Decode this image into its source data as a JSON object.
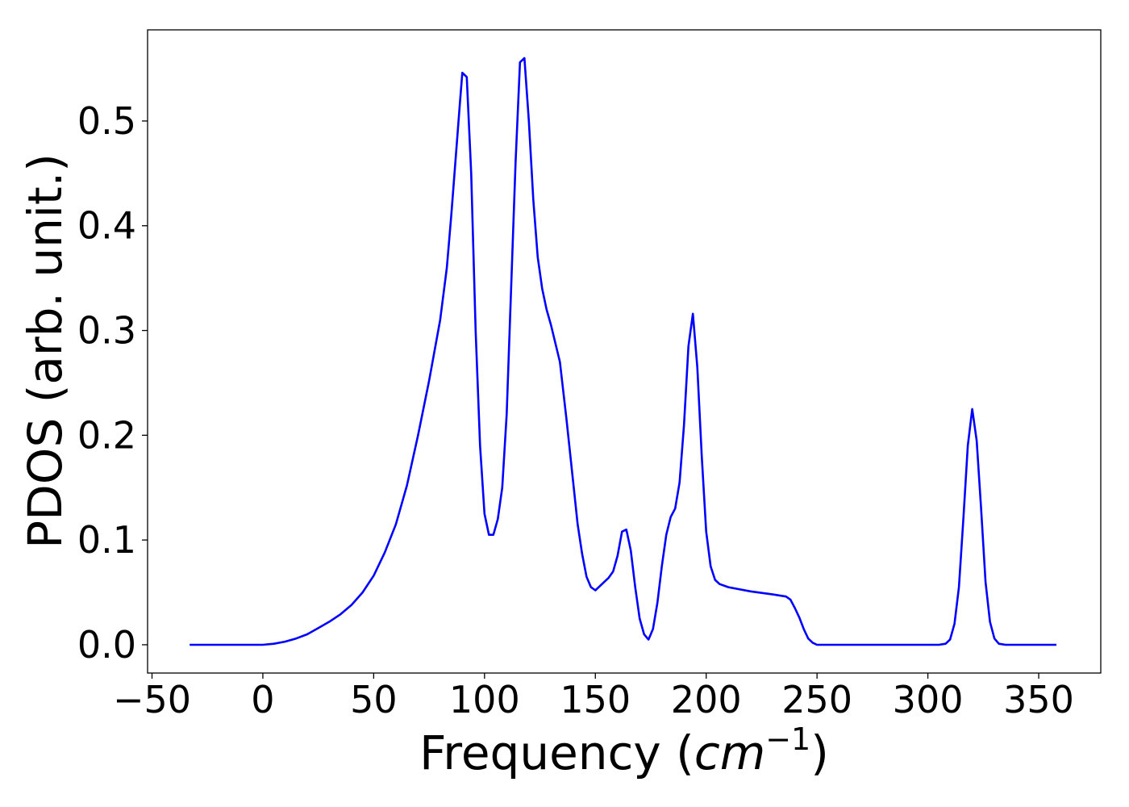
{
  "chart_data": {
    "type": "line",
    "title": "",
    "xlabel": "Frequency (",
    "xlabel_math": "cm",
    "xlabel_sup": "−1",
    "xlabel_close": ")",
    "ylabel": "PDOS (arb. unit.)",
    "xlim": [
      -52,
      378
    ],
    "ylim": [
      -0.027,
      0.587
    ],
    "xticks": [
      -50,
      0,
      50,
      100,
      150,
      200,
      250,
      300,
      350
    ],
    "xtick_labels": [
      "−50",
      "0",
      "50",
      "100",
      "150",
      "200",
      "250",
      "300",
      "350"
    ],
    "yticks": [
      0.0,
      0.1,
      0.2,
      0.3,
      0.4,
      0.5
    ],
    "ytick_labels": [
      "0.0",
      "0.1",
      "0.2",
      "0.3",
      "0.4",
      "0.5"
    ],
    "grid": false,
    "legend": "none",
    "series": [
      {
        "color": "#0000ff",
        "x": [
          -33,
          -20,
          -10,
          0,
          5,
          10,
          15,
          20,
          25,
          30,
          35,
          40,
          45,
          50,
          55,
          60,
          65,
          70,
          75,
          80,
          83,
          85,
          87,
          89,
          90,
          92,
          94,
          96,
          98,
          100,
          102,
          104,
          106,
          108,
          110,
          112,
          114,
          116,
          118,
          120,
          122,
          124,
          126,
          128,
          130,
          134,
          137,
          140,
          142,
          144,
          146,
          148,
          150,
          152,
          154,
          156,
          158,
          160,
          162,
          164,
          166,
          168,
          170,
          172,
          174,
          176,
          178,
          180,
          182,
          184,
          186,
          188,
          190,
          192,
          194,
          196,
          198,
          200,
          202,
          204,
          206,
          210,
          220,
          230,
          236,
          238,
          240,
          242,
          244,
          246,
          248,
          250,
          252,
          255,
          260,
          270,
          280,
          290,
          300,
          305,
          308,
          310,
          312,
          314,
          316,
          318,
          320,
          322,
          324,
          326,
          328,
          330,
          332,
          335,
          340,
          350,
          358
        ],
        "y": [
          0.0,
          0.0,
          0.0,
          0.0,
          0.001,
          0.003,
          0.006,
          0.01,
          0.016,
          0.022,
          0.029,
          0.038,
          0.05,
          0.066,
          0.088,
          0.115,
          0.152,
          0.2,
          0.252,
          0.31,
          0.36,
          0.41,
          0.465,
          0.52,
          0.546,
          0.542,
          0.45,
          0.3,
          0.19,
          0.125,
          0.105,
          0.105,
          0.12,
          0.15,
          0.22,
          0.34,
          0.46,
          0.556,
          0.56,
          0.5,
          0.425,
          0.37,
          0.34,
          0.32,
          0.305,
          0.27,
          0.215,
          0.155,
          0.115,
          0.087,
          0.065,
          0.055,
          0.052,
          0.056,
          0.06,
          0.064,
          0.07,
          0.085,
          0.108,
          0.11,
          0.09,
          0.055,
          0.025,
          0.01,
          0.005,
          0.015,
          0.04,
          0.075,
          0.105,
          0.122,
          0.13,
          0.155,
          0.21,
          0.285,
          0.316,
          0.265,
          0.18,
          0.108,
          0.075,
          0.062,
          0.058,
          0.055,
          0.051,
          0.048,
          0.046,
          0.043,
          0.035,
          0.026,
          0.015,
          0.006,
          0.002,
          0.0,
          0.0,
          0.0,
          0.0,
          0.0,
          0.0,
          0.0,
          0.0,
          0.0,
          0.001,
          0.005,
          0.02,
          0.055,
          0.12,
          0.19,
          0.225,
          0.195,
          0.13,
          0.06,
          0.022,
          0.006,
          0.001,
          0.0,
          0.0,
          0.0,
          0.0
        ]
      }
    ]
  }
}
